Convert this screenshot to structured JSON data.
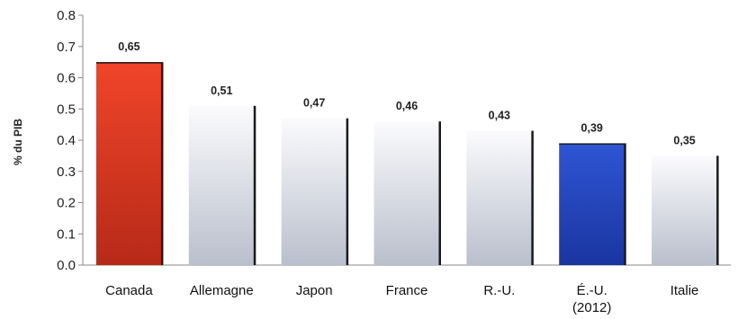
{
  "chart_data": {
    "type": "bar",
    "title": "",
    "xlabel": "",
    "ylabel": "% du PIB",
    "ylim": [
      0,
      0.8
    ],
    "yticks": [
      "0.0",
      "0.1",
      "0.2",
      "0.3",
      "0.4",
      "0.5",
      "0.6",
      "0.7",
      "0.8"
    ],
    "categories": [
      "Canada",
      "Allemagne",
      "Japon",
      "France",
      "R.-U.",
      "É.-U.",
      "Italie"
    ],
    "category_sublabels": [
      "",
      "",
      "",
      "",
      "",
      "(2012)",
      ""
    ],
    "values": [
      0.65,
      0.51,
      0.47,
      0.46,
      0.43,
      0.39,
      0.35
    ],
    "value_labels": [
      "0,65",
      "0,51",
      "0,47",
      "0,46",
      "0,43",
      "0,39",
      "0,35"
    ],
    "bar_colors": [
      "#d9331f",
      "#c9ced8",
      "#c9ced8",
      "#c9ced8",
      "#c9ced8",
      "#2446b8",
      "#c9ced8"
    ],
    "grid": false,
    "legend": "none"
  }
}
